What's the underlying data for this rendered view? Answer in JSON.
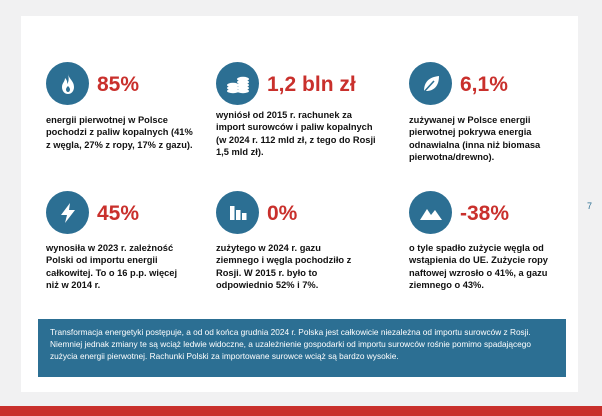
{
  "stats": [
    {
      "icon": "flame-icon",
      "value": "85%",
      "description": "energii pierwotnej w Polsce pochodzi z paliw kopalnych (41% z węgla, 27% z ropy, 17% z gazu)."
    },
    {
      "icon": "coins-icon",
      "value": "1,2 bln zł",
      "description": "wyniósł od 2015 r. rachunek za import surowców i paliw kopalnych (w 2024 r. 112 mld zł, z tego do Rosji 1,5 mld zł)."
    },
    {
      "icon": "leaf-icon",
      "value": "6,1%",
      "description": "zużywanej w Polsce energii pierwotnej pokrywa energia odnawialna (inna niż biomasa pierwotna/drewno)."
    },
    {
      "icon": "lightning-icon",
      "value": "45%",
      "description": "wynosiła w 2023 r. zależność Polski od importu energii całkowitej. To o 16 p.p. więcej niż w 2014 r."
    },
    {
      "icon": "bar-chart-icon",
      "value": "0%",
      "description": "zużytego w 2024 r. gazu ziemnego i węgla pochodziło z Rosji. W 2015 r. było to odpowiednio 52% i 7%."
    },
    {
      "icon": "mountain-icon",
      "value": "-38%",
      "description": "o tyle spadło zużycie węgla od wstąpienia do UE. Zużycie ropy naftowej wzrosło o 41%, a gazu ziemnego o 43%."
    }
  ],
  "page_number": "7",
  "summary": "Transformacja energetyki postępuje, a od od końca grudnia 2024 r. Polska jest całkowicie niezależna od importu surowców z Rosji. Niemniej jednak zmiany te są wciąż ledwie widoczne, a uzależnienie gospodarki od importu surowców rośnie pomimo spadającego zużycia energii pierwotnej. Rachunki Polski za importowane surowce wciąż są bardzo wysokie.",
  "colors": {
    "accent": "#c9302c",
    "primary": "#2c6f93",
    "background": "#f1f1f2"
  }
}
